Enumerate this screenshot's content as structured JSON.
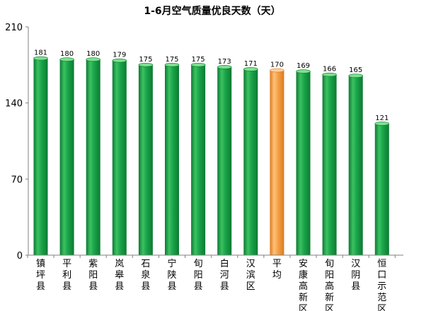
{
  "chart_data": {
    "type": "bar",
    "title": "1-6月空气质量优良天数（天）",
    "xlabel": "",
    "ylabel": "",
    "ylim": [
      0,
      210
    ],
    "yticks": [
      0,
      70,
      140,
      210
    ],
    "grid": false,
    "legend": "none",
    "categories": [
      "镇坪县",
      "平利县",
      "紫阳县",
      "岚皋县",
      "石泉县",
      "宁陕县",
      "旬阳县",
      "白河县",
      "汉滨区",
      "平均",
      "安康高新区",
      "旬阳高新区",
      "汉阴县",
      "恒口示范区"
    ],
    "values": [
      181,
      180,
      180,
      179,
      175,
      175,
      175,
      173,
      171,
      170,
      169,
      166,
      165,
      121
    ],
    "highlight_index": 9,
    "colors": {
      "bar": "#1aa64a",
      "bar_light": "#7fe08f",
      "bar_dark": "#0d7a33",
      "highlight": "#f7a24a",
      "highlight_light": "#ffd09a",
      "highlight_dark": "#d97a1f",
      "axis": "#808080"
    }
  }
}
